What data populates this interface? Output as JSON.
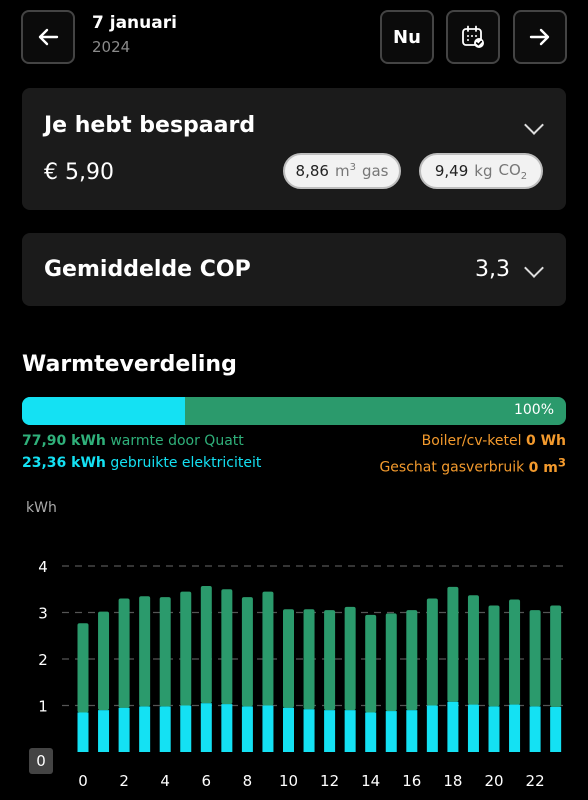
{
  "header": {
    "date_day": "7 januari",
    "date_year": "2024",
    "now_label": "Nu",
    "back_icon": "arrow-left-icon",
    "calendar_icon": "calendar-check-icon",
    "next_icon": "arrow-right-icon"
  },
  "savings": {
    "title": "Je hebt bespaard",
    "amount": "€ 5,90",
    "gas_value": "8,86",
    "gas_unit": "m",
    "gas_sup": "3",
    "gas_label": "gas",
    "co2_value": "9,49",
    "co2_unit": "kg",
    "co2_label": "CO",
    "co2_sub": "2"
  },
  "cop": {
    "title": "Gemiddelde COP",
    "value": "3,3"
  },
  "distribution": {
    "title": "Warmteverdeling",
    "percent": "100%",
    "heat_value": "77,90 kWh",
    "heat_text": "warmte door Quatt",
    "elec_value": "23,36 kWh",
    "elec_text": "gebruikte elektriciteit",
    "boiler_text": "Boiler/cv-ketel",
    "boiler_value": "0 Wh",
    "gas_text": "Geschat gasverbruik",
    "gas_value": "0 m",
    "gas_sup": "3",
    "elec_fraction": 0.3,
    "colors": {
      "heat": "#2b9a6c",
      "elec": "#14e1f3",
      "boiler": "#f39a2d"
    }
  },
  "chart_data": {
    "type": "bar",
    "ylabel": "kWh",
    "ylim": [
      0,
      4
    ],
    "yticks": [
      "0",
      "1",
      "2",
      "3",
      "4"
    ],
    "x": [
      0,
      1,
      2,
      3,
      4,
      5,
      6,
      7,
      8,
      9,
      10,
      11,
      12,
      13,
      14,
      15,
      16,
      17,
      18,
      19,
      20,
      21,
      22,
      23
    ],
    "xtick_labels": [
      "0",
      "2",
      "4",
      "6",
      "8",
      "10",
      "12",
      "14",
      "16",
      "18",
      "20",
      "22"
    ],
    "series": [
      {
        "name": "gebruikte elektriciteit",
        "color": "#14e1f3",
        "values": [
          0.85,
          0.9,
          0.95,
          0.98,
          0.98,
          1.0,
          1.05,
          1.03,
          0.98,
          1.0,
          0.95,
          0.92,
          0.9,
          0.9,
          0.85,
          0.88,
          0.9,
          1.0,
          1.08,
          1.02,
          0.98,
          1.02,
          0.98,
          0.97
        ]
      },
      {
        "name": "warmte door Quatt",
        "color": "#2b9a6c",
        "values": [
          2.77,
          3.02,
          3.3,
          3.35,
          3.33,
          3.45,
          3.57,
          3.5,
          3.33,
          3.45,
          3.07,
          3.07,
          3.05,
          3.12,
          2.95,
          2.98,
          3.05,
          3.3,
          3.55,
          3.37,
          3.15,
          3.28,
          3.05,
          3.15
        ]
      }
    ],
    "grid": true
  }
}
